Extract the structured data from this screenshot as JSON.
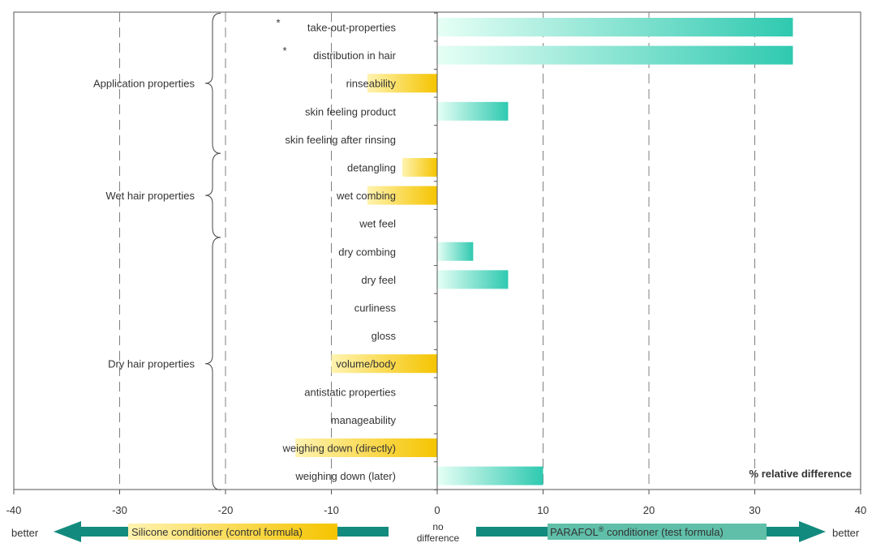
{
  "chart_data": {
    "type": "bar",
    "orientation": "horizontal",
    "xlim": [
      -40,
      40
    ],
    "grid": "vertical dashed",
    "x_ticks": [
      "-40",
      "-30",
      "-20",
      "-10",
      "0",
      "10",
      "20",
      "30",
      "40"
    ],
    "x_tick_values": [
      -40,
      -30,
      -20,
      -10,
      0,
      10,
      20,
      30,
      40
    ],
    "annotation": "% relative difference",
    "categories": [
      {
        "label": "take-out-properties",
        "value": 33.6,
        "marker": "*"
      },
      {
        "label": "distribution in hair",
        "value": 33.6,
        "marker": "*"
      },
      {
        "label": "rinseability",
        "value": -6.6,
        "marker": ""
      },
      {
        "label": "skin feeling product",
        "value": 6.7,
        "marker": ""
      },
      {
        "label": "skin feeling after rinsing",
        "value": 0,
        "marker": ""
      },
      {
        "label": "detangling",
        "value": -3.3,
        "marker": ""
      },
      {
        "label": "wet combing",
        "value": -6.6,
        "marker": ""
      },
      {
        "label": "wet feel",
        "value": 0,
        "marker": ""
      },
      {
        "label": "dry combing",
        "value": 3.4,
        "marker": ""
      },
      {
        "label": "dry feel",
        "value": 6.7,
        "marker": ""
      },
      {
        "label": "curliness",
        "value": 0,
        "marker": ""
      },
      {
        "label": "gloss",
        "value": 0,
        "marker": ""
      },
      {
        "label": "volume/body",
        "value": -10,
        "marker": ""
      },
      {
        "label": "antistatic properties",
        "value": 0,
        "marker": ""
      },
      {
        "label": "manageability",
        "value": 0,
        "marker": ""
      },
      {
        "label": "weighing down (directly)",
        "value": -13.4,
        "marker": ""
      },
      {
        "label": "weighing down (later)",
        "value": 10,
        "marker": ""
      }
    ],
    "groups": [
      {
        "label": "Application  properties",
        "from_index": 0,
        "to_index": 4
      },
      {
        "label": "Wet hair properties",
        "from_index": 5,
        "to_index": 7
      },
      {
        "label": "Dry hair properties",
        "from_index": 8,
        "to_index": 16
      }
    ],
    "colors": {
      "negative_bar_start": "#fff3b0",
      "negative_bar_end": "#f5c400",
      "positive_bar_start": "#e6fff5",
      "positive_bar_end": "#2fc9b0",
      "arrow": "#138a7e",
      "gridline": "#808080"
    }
  },
  "footer": {
    "left_better": "better",
    "left_label": "Silicone conditioner (control formula)",
    "center_line1": "no",
    "center_line2": "difference",
    "right_label_prefix": "PARAFOL",
    "right_label_sup": "®",
    "right_label_suffix": " conditioner (test formula)",
    "right_better": "better"
  }
}
